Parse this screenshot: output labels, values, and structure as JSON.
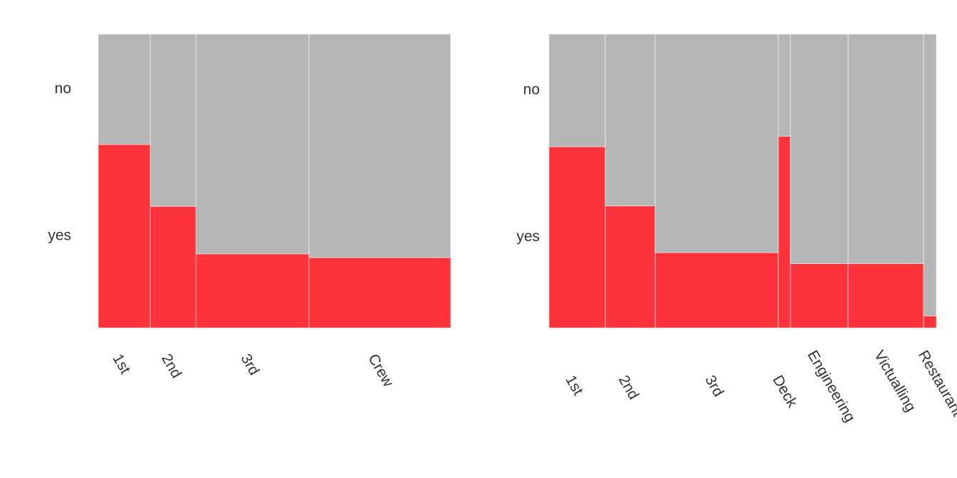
{
  "chart_data": [
    {
      "type": "mosaic",
      "categories": [
        "1st",
        "2nd",
        "3rd",
        "Crew"
      ],
      "series": [
        {
          "name": "no",
          "color": "#b5b5b5",
          "values": [
            122,
            167,
            528,
            673
          ]
        },
        {
          "name": "yes",
          "color": "#fc333b",
          "values": [
            203,
            118,
            178,
            212
          ]
        }
      ]
    },
    {
      "type": "mosaic",
      "categories": [
        "1st",
        "2nd",
        "3rd",
        "Deck",
        "Engineering",
        "Victualling",
        "Restaurant"
      ],
      "series": [
        {
          "name": "no",
          "color": "#b5b5b5",
          "values": [
            123,
            166,
            522,
            24,
            257,
            336,
            70
          ]
        },
        {
          "name": "yes",
          "color": "#fc333b",
          "values": [
            198,
            118,
            180,
            45,
            72,
            94,
            3
          ]
        }
      ]
    }
  ]
}
